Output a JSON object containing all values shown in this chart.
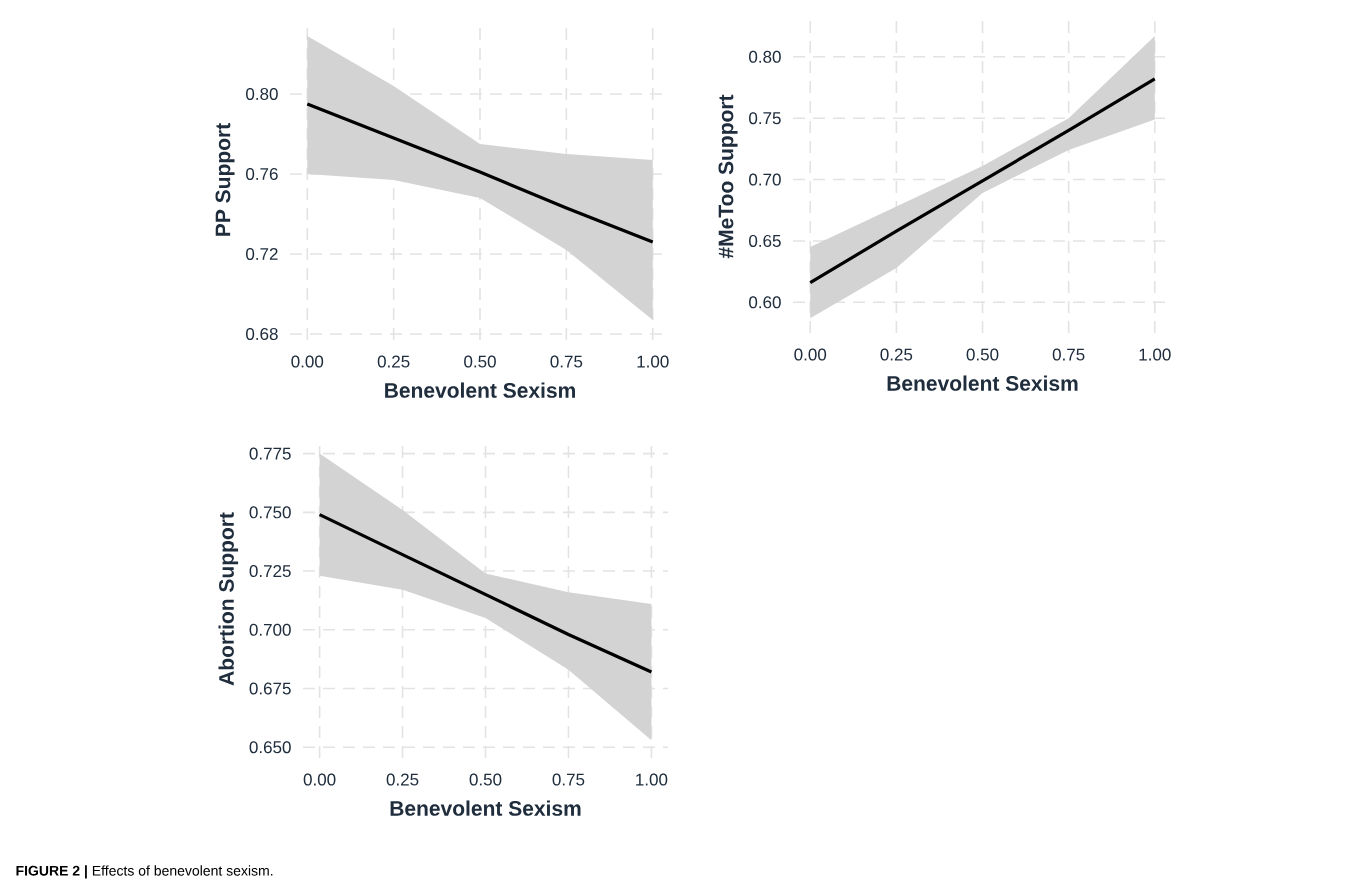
{
  "chart_data": [
    {
      "type": "line",
      "xlabel": "Benevolent Sexism",
      "ylabel": "PP Support",
      "grid": true,
      "x": [
        0,
        0.25,
        0.5,
        0.75,
        1
      ],
      "series": [
        {
          "color": "#000000",
          "values": [
            0.795,
            0.778,
            0.761,
            0.743,
            0.726
          ],
          "lower": [
            0.76,
            0.757,
            0.748,
            0.722,
            0.687
          ],
          "upper": [
            0.829,
            0.804,
            0.775,
            0.77,
            0.767
          ]
        }
      ],
      "xlim": [
        -0.05,
        1.05
      ],
      "ylim": [
        0.677,
        0.837
      ],
      "xticks": [
        {
          "value": 0,
          "label": "0.00"
        },
        {
          "value": 0.25,
          "label": "0.25"
        },
        {
          "value": 0.5,
          "label": "0.50"
        },
        {
          "value": 0.75,
          "label": "0.75"
        },
        {
          "value": 1,
          "label": "1.00"
        }
      ],
      "yticks": [
        {
          "value": 0.68,
          "label": "0.68"
        },
        {
          "value": 0.72,
          "label": "0.72"
        },
        {
          "value": 0.76,
          "label": "0.76"
        },
        {
          "value": 0.8,
          "label": "0.80"
        }
      ]
    },
    {
      "type": "line",
      "xlabel": "Benevolent Sexism",
      "ylabel": "#MeToo Support",
      "grid": true,
      "x": [
        0,
        0.25,
        0.5,
        0.75,
        1
      ],
      "series": [
        {
          "color": "#000000",
          "values": [
            0.616,
            0.658,
            0.699,
            0.74,
            0.782
          ],
          "lower": [
            0.587,
            0.628,
            0.689,
            0.724,
            0.749
          ],
          "upper": [
            0.645,
            0.678,
            0.711,
            0.75,
            0.817
          ]
        }
      ],
      "xlim": [
        -0.05,
        1.05
      ],
      "ylim": [
        0.575,
        0.83
      ],
      "xticks": [
        {
          "value": 0,
          "label": "0.00"
        },
        {
          "value": 0.25,
          "label": "0.25"
        },
        {
          "value": 0.5,
          "label": "0.50"
        },
        {
          "value": 0.75,
          "label": "0.75"
        },
        {
          "value": 1,
          "label": "1.00"
        }
      ],
      "yticks": [
        {
          "value": 0.6,
          "label": "0.60"
        },
        {
          "value": 0.65,
          "label": "0.65"
        },
        {
          "value": 0.7,
          "label": "0.70"
        },
        {
          "value": 0.75,
          "label": "0.75"
        },
        {
          "value": 0.8,
          "label": "0.80"
        }
      ]
    },
    {
      "type": "line",
      "xlabel": "Benevolent Sexism",
      "ylabel": "Abortion Support",
      "grid": true,
      "x": [
        0,
        0.25,
        0.5,
        0.75,
        1
      ],
      "series": [
        {
          "color": "#000000",
          "values": [
            0.749,
            0.732,
            0.715,
            0.698,
            0.682
          ],
          "lower": [
            0.723,
            0.717,
            0.705,
            0.683,
            0.653
          ],
          "upper": [
            0.775,
            0.751,
            0.724,
            0.716,
            0.711
          ]
        }
      ],
      "xlim": [
        -0.05,
        1.05
      ],
      "ylim": [
        0.6454,
        0.7808
      ],
      "xticks": [
        {
          "value": 0,
          "label": "0.00"
        },
        {
          "value": 0.25,
          "label": "0.25"
        },
        {
          "value": 0.5,
          "label": "0.50"
        },
        {
          "value": 0.75,
          "label": "0.75"
        },
        {
          "value": 1,
          "label": "1.00"
        }
      ],
      "yticks": [
        {
          "value": 0.65,
          "label": "0.650"
        },
        {
          "value": 0.675,
          "label": "0.675"
        },
        {
          "value": 0.7,
          "label": "0.700"
        },
        {
          "value": 0.725,
          "label": "0.725"
        },
        {
          "value": 0.75,
          "label": "0.750"
        },
        {
          "value": 0.775,
          "label": "0.775"
        }
      ],
      "annotations": [
        "**FIGURE 2 |** Effects of benevolent sexism."
      ]
    }
  ]
}
